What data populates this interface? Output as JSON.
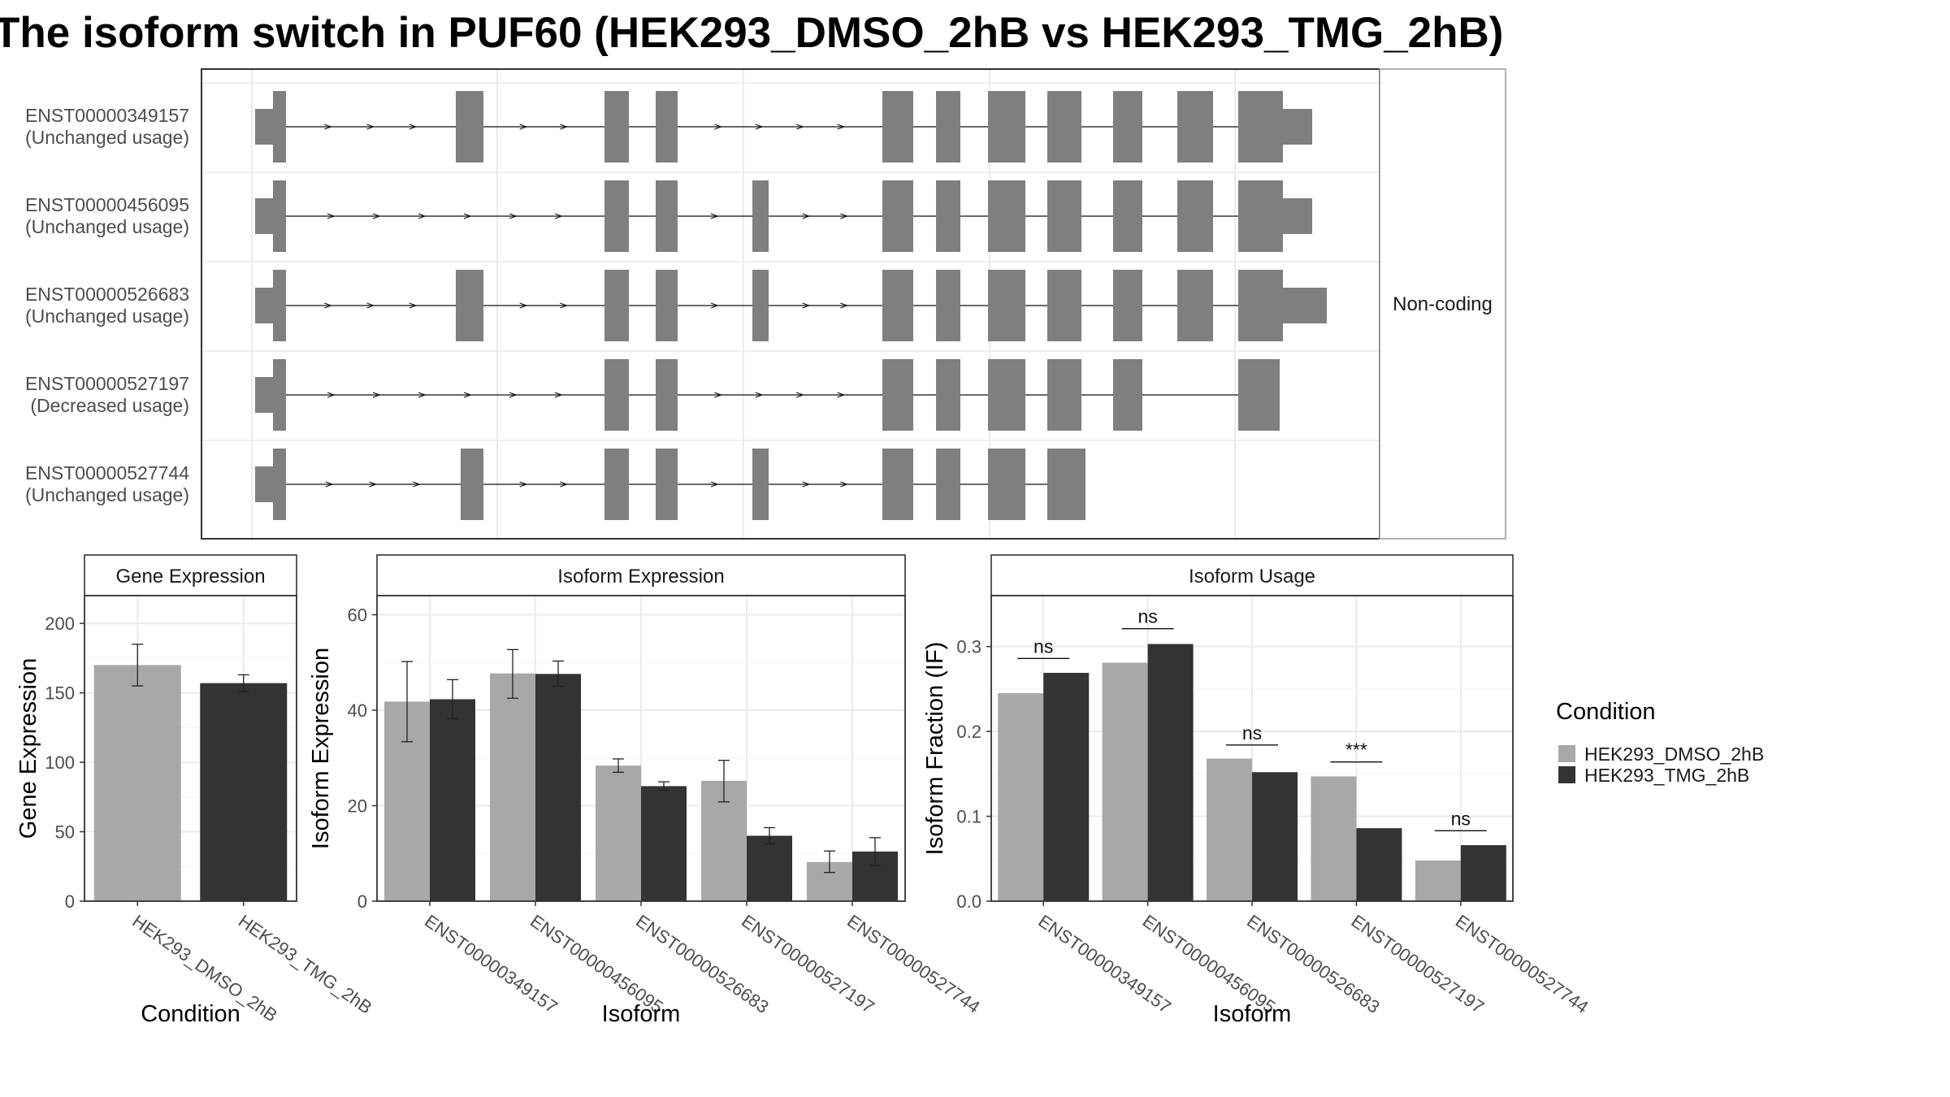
{
  "title": "The isoform switch in PUF60 (HEK293_DMSO_2hB vs HEK293_TMG_2hB)",
  "colors": {
    "exon": "#7f7f7f",
    "HEK293_DMSO_2hB": "#a8a8a8",
    "HEK293_TMG_2hB": "#333333",
    "grid": "#ebebeb",
    "strip_bg": "#ffffff"
  },
  "transcript_panel": {
    "facet_label": "Non-coding",
    "transcripts": [
      {
        "id": "ENST00000349157",
        "status": "(Unchanged usage)"
      },
      {
        "id": "ENST00000456095",
        "status": "(Unchanged usage)"
      },
      {
        "id": "ENST00000526683",
        "status": "(Unchanged usage)"
      },
      {
        "id": "ENST00000527197",
        "status": "(Decreased usage)"
      },
      {
        "id": "ENST00000527744",
        "status": "(Unchanged usage)"
      }
    ]
  },
  "legend": {
    "title": "Condition",
    "items": [
      "HEK293_DMSO_2hB",
      "HEK293_TMG_2hB"
    ]
  },
  "chart_data": [
    {
      "type": "bar",
      "title": "Gene Expression",
      "xlabel": "Condition",
      "ylabel": "Gene Expression",
      "ylim": [
        0,
        220
      ],
      "yticks": [
        0,
        50,
        100,
        150,
        200
      ],
      "categories": [
        "HEK293_DMSO_2hB",
        "HEK293_TMG_2hB"
      ],
      "values": [
        170,
        157
      ],
      "errors": [
        [
          155,
          185
        ],
        [
          151,
          163
        ]
      ]
    },
    {
      "type": "bar",
      "title": "Isoform Expression",
      "xlabel": "Isoform",
      "ylabel": "Isoform Expression",
      "ylim": [
        0,
        64
      ],
      "yticks": [
        0,
        20,
        40,
        60
      ],
      "categories": [
        "ENST00000349157",
        "ENST00000456095",
        "ENST00000526683",
        "ENST00000527197",
        "ENST00000527744"
      ],
      "series": [
        {
          "name": "HEK293_DMSO_2hB",
          "values": [
            41.8,
            47.7,
            28.4,
            25.2,
            8.2
          ],
          "errors": [
            [
              33.4,
              50.2
            ],
            [
              42.5,
              52.7
            ],
            [
              27.0,
              29.8
            ],
            [
              20.8,
              29.5
            ],
            [
              6.0,
              10.5
            ]
          ]
        },
        {
          "name": "HEK293_TMG_2hB",
          "values": [
            42.3,
            47.6,
            24.1,
            13.7,
            10.4
          ],
          "errors": [
            [
              38.2,
              46.4
            ],
            [
              45.0,
              50.3
            ],
            [
              23.2,
              25.0
            ],
            [
              12.0,
              15.4
            ],
            [
              7.5,
              13.3
            ]
          ]
        }
      ]
    },
    {
      "type": "bar",
      "title": "Isoform Usage",
      "xlabel": "Isoform",
      "ylabel": "Isoform Fraction (IF)",
      "ylim": [
        0,
        0.36
      ],
      "yticks": [
        0.0,
        0.1,
        0.2,
        0.3
      ],
      "categories": [
        "ENST00000349157",
        "ENST00000456095",
        "ENST00000526683",
        "ENST00000527197",
        "ENST00000527744"
      ],
      "series": [
        {
          "name": "HEK293_DMSO_2hB",
          "values": [
            0.245,
            0.281,
            0.168,
            0.147,
            0.048
          ]
        },
        {
          "name": "HEK293_TMG_2hB",
          "values": [
            0.269,
            0.303,
            0.152,
            0.086,
            0.066
          ]
        }
      ],
      "significance": [
        "ns",
        "ns",
        "ns",
        "***",
        "ns"
      ],
      "sig_line_y": [
        0.286,
        0.321,
        0.184,
        0.164,
        0.083
      ]
    }
  ]
}
